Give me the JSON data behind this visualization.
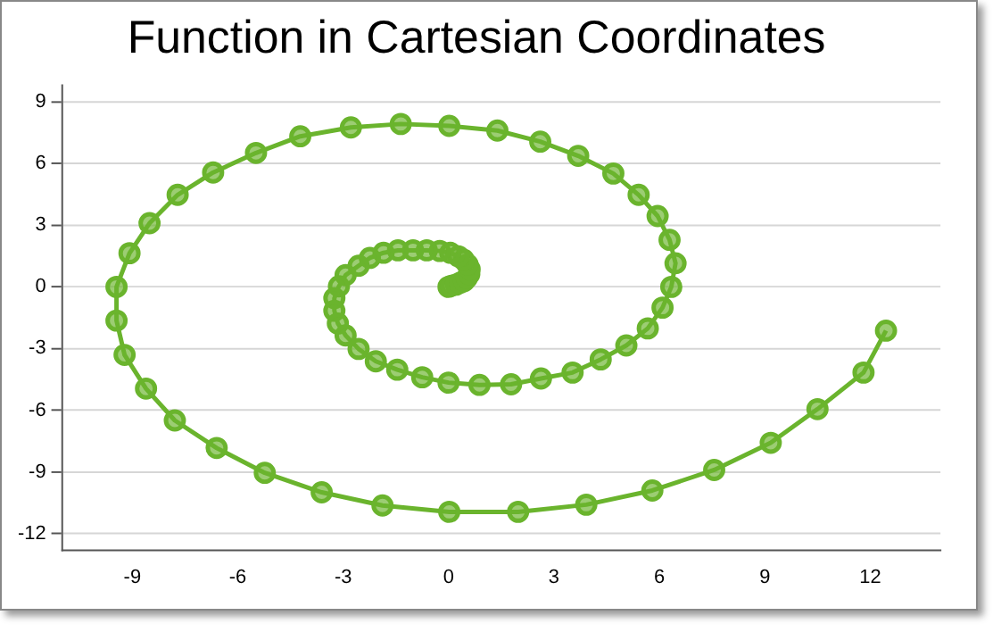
{
  "chart_data": {
    "type": "line",
    "title": "Function in Cartesian Coordinates",
    "x": [
      0,
      0.08,
      0.21,
      0.33,
      0.44,
      0.52,
      0.59,
      0.6,
      0.54,
      0.43,
      0.28,
      0.05,
      -0.25,
      -0.62,
      -1.01,
      -1.44,
      -1.85,
      -2.24,
      -2.56,
      -2.93,
      -3.12,
      -3.25,
      -3.25,
      -3.15,
      -2.93,
      -2.56,
      -2.07,
      -1.46,
      -0.75,
      0,
      0.88,
      1.78,
      2.63,
      3.53,
      4.33,
      5.06,
      5.67,
      6.09,
      6.34,
      6.46,
      6.29,
      5.95,
      5.41,
      4.69,
      3.69,
      2.61,
      1.39,
      0.02,
      -1.36,
      -2.78,
      -4.22,
      -5.48,
      -6.7,
      -7.71,
      -8.51,
      -9.08,
      -9.45,
      -9.45,
      -9.22,
      -8.61,
      -7.79,
      -6.6,
      -5.23,
      -3.61,
      -1.88,
      0.02,
      1.98,
      3.92,
      5.8,
      7.56,
      9.17,
      10.5,
      11.81,
      12.45
    ],
    "series": [
      {
        "color": "#6ab42d",
        "values": [
          0,
          0.05,
          0.11,
          0.2,
          0.28,
          0.43,
          0.63,
          0.86,
          1.09,
          1.32,
          1.49,
          1.66,
          1.75,
          1.78,
          1.78,
          1.78,
          1.66,
          1.41,
          1.03,
          0.57,
          0.03,
          -0.55,
          -1.16,
          -1.78,
          -2.36,
          -3.02,
          -3.62,
          -4.03,
          -4.4,
          -4.66,
          -4.77,
          -4.74,
          -4.46,
          -4.17,
          -3.53,
          -2.85,
          -2.02,
          -1.01,
          0,
          1.15,
          2.29,
          3.45,
          4.48,
          5.52,
          6.38,
          7.07,
          7.61,
          7.84,
          7.93,
          7.76,
          7.33,
          6.52,
          5.57,
          4.48,
          3.1,
          1.64,
          0,
          -1.64,
          -3.31,
          -4.95,
          -6.5,
          -7.84,
          -9.05,
          -10,
          -10.64,
          -10.95,
          -10.95,
          -10.6,
          -9.91,
          -8.91,
          -7.59,
          -5.95,
          -4.17,
          -2.13
        ]
      }
    ],
    "xlim": [
      -11,
      14
    ],
    "xticks": [
      -9,
      -6,
      -3,
      0,
      3,
      6,
      9,
      12
    ],
    "ylim": [
      -12.8,
      9.8
    ],
    "yticks": [
      -12,
      -9,
      -6,
      -3,
      0,
      3,
      6,
      9
    ],
    "grid": "y",
    "legend": false,
    "marker": "circle",
    "line_style": "solid"
  }
}
